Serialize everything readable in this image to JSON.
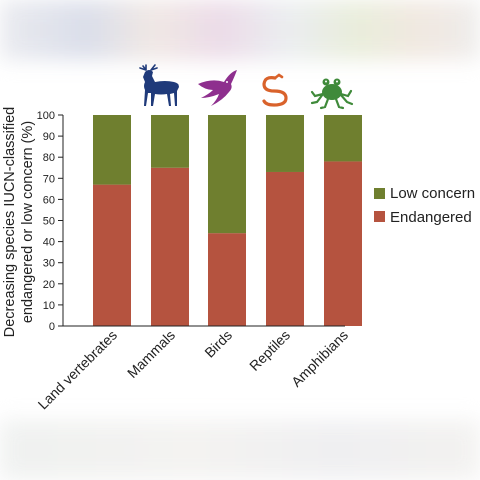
{
  "chart_data": {
    "type": "bar",
    "stacked": true,
    "categories": [
      "Land vertebrates",
      "Mammals",
      "Birds",
      "Reptiles",
      "Amphibians"
    ],
    "series": [
      {
        "name": "Endangered",
        "values": [
          67,
          75,
          44,
          73,
          78
        ],
        "color": "#b5533f"
      },
      {
        "name": "Low concern",
        "values": [
          33,
          25,
          56,
          27,
          22
        ],
        "color": "#6f7f2f"
      }
    ],
    "ylabel": [
      "Decreasing species IUCN-classified",
      "endangered or low concern (%)"
    ],
    "ylim": [
      0,
      100
    ],
    "yticks": [
      0,
      10,
      20,
      30,
      40,
      50,
      60,
      70,
      80,
      90,
      100
    ],
    "legend": [
      "Low concern",
      "Endangered"
    ],
    "legend_position": "right",
    "grid": false,
    "icons": [
      {
        "category": "Mammals",
        "icon": "deer-icon",
        "color": "#1f3a7a"
      },
      {
        "category": "Birds",
        "icon": "swallow-icon",
        "color": "#8e2f8e"
      },
      {
        "category": "Reptiles",
        "icon": "snake-icon",
        "color": "#d9622b"
      },
      {
        "category": "Amphibians",
        "icon": "frog-icon",
        "color": "#3f8a3a"
      }
    ]
  }
}
